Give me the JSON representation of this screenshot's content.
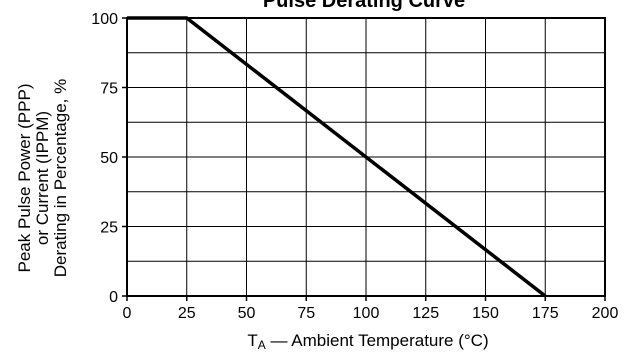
{
  "chart_data": {
    "type": "line",
    "title": "Pulse Derating Curve",
    "xlabel": "TA — Ambient Temperature (°C)",
    "xlabel_main": "T",
    "xlabel_sub": "A",
    "xlabel_rest": " — Ambient Temperature (°C)",
    "ylabel_lines": [
      "Peak Pulse Power (PPP)",
      "or Current (IPPM)",
      "Derating in Percentage, %"
    ],
    "xlim": [
      0,
      200
    ],
    "ylim": [
      0,
      100
    ],
    "x_ticks": [
      0,
      25,
      50,
      75,
      100,
      125,
      150,
      175,
      200
    ],
    "y_ticks": [
      0,
      25,
      50,
      75,
      100
    ],
    "grid": true,
    "legend": "none",
    "series": [
      {
        "x": [
          0,
          25,
          175
        ],
        "y": [
          100,
          100,
          0
        ]
      }
    ]
  }
}
